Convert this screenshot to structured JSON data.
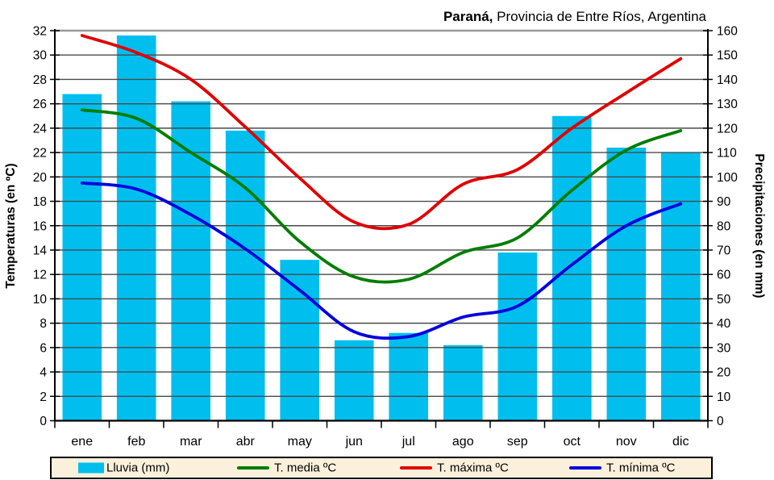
{
  "title": {
    "bold_part": "Paraná,",
    "regular_part": " Provincia de Entre Ríos, Argentina"
  },
  "legend": {
    "items": [
      {
        "label": "Lluvia (mm)",
        "type": "bar-swatch"
      },
      {
        "label": "T. media ºC",
        "type": "line"
      },
      {
        "label": "T. máxima ºC",
        "type": "line"
      },
      {
        "label": "T. mínima ºC",
        "type": "line"
      }
    ]
  },
  "chart_data": {
    "type": "combo: bar (precipitation) + 3 smoothed lines (temperatures)",
    "title": "Paraná, Provincia de Entre Ríos, Argentina",
    "categories": [
      "ene",
      "feb",
      "mar",
      "abr",
      "may",
      "jun",
      "jul",
      "ago",
      "sep",
      "oct",
      "nov",
      "dic"
    ],
    "precipitation": {
      "name": "Lluvia (mm)",
      "color": "#00bfef",
      "values_mm": [
        134,
        158,
        131,
        119,
        66,
        33,
        36,
        31,
        69,
        125,
        112,
        110
      ]
    },
    "temperature_series": [
      {
        "name": "T. media ºC",
        "color": "#007d00",
        "values_c": [
          25.5,
          24.8,
          22.0,
          19.1,
          14.7,
          11.8,
          11.6,
          13.8,
          15.0,
          18.9,
          22.2,
          23.8
        ]
      },
      {
        "name": "T. máxima ºC",
        "color": "#e00000",
        "values_c": [
          31.6,
          30.2,
          28.0,
          24.1,
          19.9,
          16.3,
          16.1,
          19.4,
          20.6,
          24.0,
          26.9,
          29.7
        ]
      },
      {
        "name": "T. mínima ºC",
        "color": "#0000dd",
        "values_c": [
          19.5,
          19.0,
          16.9,
          14.1,
          10.7,
          7.3,
          6.9,
          8.5,
          9.4,
          12.8,
          16.0,
          17.8
        ]
      }
    ],
    "left_axis": {
      "label": "Temperaturas (en ºC)",
      "min": 0,
      "max": 32,
      "step": 2,
      "ticks": [
        0,
        2,
        4,
        6,
        8,
        10,
        12,
        14,
        16,
        18,
        20,
        22,
        24,
        26,
        28,
        30,
        32
      ]
    },
    "right_axis": {
      "label": "Precipitaciones (en mm)",
      "min": 0,
      "max": 160,
      "step": 10,
      "ticks": [
        0,
        10,
        20,
        30,
        40,
        50,
        60,
        70,
        80,
        90,
        100,
        110,
        120,
        130,
        140,
        150,
        160
      ]
    },
    "grid": "horizontal lines every 2 ºC / 10 mm",
    "legend_position": "bottom"
  }
}
